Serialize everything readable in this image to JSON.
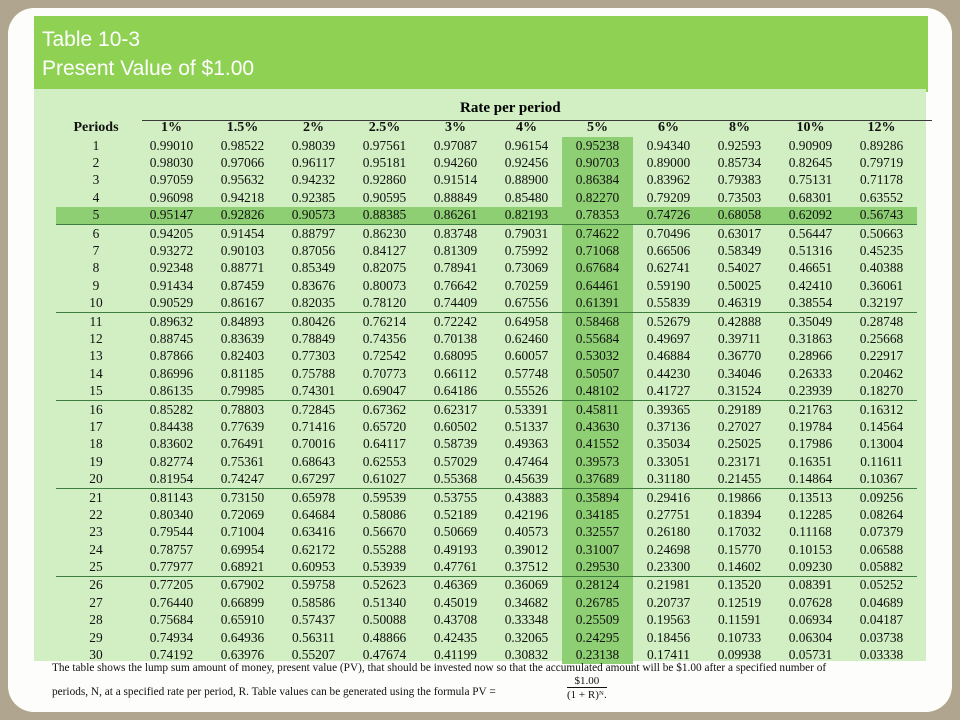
{
  "slide": {
    "title_line1": "Table 10-3",
    "title_line2": "Present Value of $1.00"
  },
  "table": {
    "rate_header": "Rate per period",
    "columns": [
      "Periods",
      "1%",
      "1.5%",
      "2%",
      "2.5%",
      "3%",
      "4%",
      "5%",
      "6%",
      "8%",
      "10%",
      "12%"
    ],
    "highlight_column": "5%",
    "highlight_period": "5",
    "rows": [
      [
        "1",
        "0.99010",
        "0.98522",
        "0.98039",
        "0.97561",
        "0.97087",
        "0.96154",
        "0.95238",
        "0.94340",
        "0.92593",
        "0.90909",
        "0.89286"
      ],
      [
        "2",
        "0.98030",
        "0.97066",
        "0.96117",
        "0.95181",
        "0.94260",
        "0.92456",
        "0.90703",
        "0.89000",
        "0.85734",
        "0.82645",
        "0.79719"
      ],
      [
        "3",
        "0.97059",
        "0.95632",
        "0.94232",
        "0.92860",
        "0.91514",
        "0.88900",
        "0.86384",
        "0.83962",
        "0.79383",
        "0.75131",
        "0.71178"
      ],
      [
        "4",
        "0.96098",
        "0.94218",
        "0.92385",
        "0.90595",
        "0.88849",
        "0.85480",
        "0.82270",
        "0.79209",
        "0.73503",
        "0.68301",
        "0.63552"
      ],
      [
        "5",
        "0.95147",
        "0.92826",
        "0.90573",
        "0.88385",
        "0.86261",
        "0.82193",
        "0.78353",
        "0.74726",
        "0.68058",
        "0.62092",
        "0.56743"
      ],
      [
        "6",
        "0.94205",
        "0.91454",
        "0.88797",
        "0.86230",
        "0.83748",
        "0.79031",
        "0.74622",
        "0.70496",
        "0.63017",
        "0.56447",
        "0.50663"
      ],
      [
        "7",
        "0.93272",
        "0.90103",
        "0.87056",
        "0.84127",
        "0.81309",
        "0.75992",
        "0.71068",
        "0.66506",
        "0.58349",
        "0.51316",
        "0.45235"
      ],
      [
        "8",
        "0.92348",
        "0.88771",
        "0.85349",
        "0.82075",
        "0.78941",
        "0.73069",
        "0.67684",
        "0.62741",
        "0.54027",
        "0.46651",
        "0.40388"
      ],
      [
        "9",
        "0.91434",
        "0.87459",
        "0.83676",
        "0.80073",
        "0.76642",
        "0.70259",
        "0.64461",
        "0.59190",
        "0.50025",
        "0.42410",
        "0.36061"
      ],
      [
        "10",
        "0.90529",
        "0.86167",
        "0.82035",
        "0.78120",
        "0.74409",
        "0.67556",
        "0.61391",
        "0.55839",
        "0.46319",
        "0.38554",
        "0.32197"
      ],
      [
        "11",
        "0.89632",
        "0.84893",
        "0.80426",
        "0.76214",
        "0.72242",
        "0.64958",
        "0.58468",
        "0.52679",
        "0.42888",
        "0.35049",
        "0.28748"
      ],
      [
        "12",
        "0.88745",
        "0.83639",
        "0.78849",
        "0.74356",
        "0.70138",
        "0.62460",
        "0.55684",
        "0.49697",
        "0.39711",
        "0.31863",
        "0.25668"
      ],
      [
        "13",
        "0.87866",
        "0.82403",
        "0.77303",
        "0.72542",
        "0.68095",
        "0.60057",
        "0.53032",
        "0.46884",
        "0.36770",
        "0.28966",
        "0.22917"
      ],
      [
        "14",
        "0.86996",
        "0.81185",
        "0.75788",
        "0.70773",
        "0.66112",
        "0.57748",
        "0.50507",
        "0.44230",
        "0.34046",
        "0.26333",
        "0.20462"
      ],
      [
        "15",
        "0.86135",
        "0.79985",
        "0.74301",
        "0.69047",
        "0.64186",
        "0.55526",
        "0.48102",
        "0.41727",
        "0.31524",
        "0.23939",
        "0.18270"
      ],
      [
        "16",
        "0.85282",
        "0.78803",
        "0.72845",
        "0.67362",
        "0.62317",
        "0.53391",
        "0.45811",
        "0.39365",
        "0.29189",
        "0.21763",
        "0.16312"
      ],
      [
        "17",
        "0.84438",
        "0.77639",
        "0.71416",
        "0.65720",
        "0.60502",
        "0.51337",
        "0.43630",
        "0.37136",
        "0.27027",
        "0.19784",
        "0.14564"
      ],
      [
        "18",
        "0.83602",
        "0.76491",
        "0.70016",
        "0.64117",
        "0.58739",
        "0.49363",
        "0.41552",
        "0.35034",
        "0.25025",
        "0.17986",
        "0.13004"
      ],
      [
        "19",
        "0.82774",
        "0.75361",
        "0.68643",
        "0.62553",
        "0.57029",
        "0.47464",
        "0.39573",
        "0.33051",
        "0.23171",
        "0.16351",
        "0.11611"
      ],
      [
        "20",
        "0.81954",
        "0.74247",
        "0.67297",
        "0.61027",
        "0.55368",
        "0.45639",
        "0.37689",
        "0.31180",
        "0.21455",
        "0.14864",
        "0.10367"
      ],
      [
        "21",
        "0.81143",
        "0.73150",
        "0.65978",
        "0.59539",
        "0.53755",
        "0.43883",
        "0.35894",
        "0.29416",
        "0.19866",
        "0.13513",
        "0.09256"
      ],
      [
        "22",
        "0.80340",
        "0.72069",
        "0.64684",
        "0.58086",
        "0.52189",
        "0.42196",
        "0.34185",
        "0.27751",
        "0.18394",
        "0.12285",
        "0.08264"
      ],
      [
        "23",
        "0.79544",
        "0.71004",
        "0.63416",
        "0.56670",
        "0.50669",
        "0.40573",
        "0.32557",
        "0.26180",
        "0.17032",
        "0.11168",
        "0.07379"
      ],
      [
        "24",
        "0.78757",
        "0.69954",
        "0.62172",
        "0.55288",
        "0.49193",
        "0.39012",
        "0.31007",
        "0.24698",
        "0.15770",
        "0.10153",
        "0.06588"
      ],
      [
        "25",
        "0.77977",
        "0.68921",
        "0.60953",
        "0.53939",
        "0.47761",
        "0.37512",
        "0.29530",
        "0.23300",
        "0.14602",
        "0.09230",
        "0.05882"
      ],
      [
        "26",
        "0.77205",
        "0.67902",
        "0.59758",
        "0.52623",
        "0.46369",
        "0.36069",
        "0.28124",
        "0.21981",
        "0.13520",
        "0.08391",
        "0.05252"
      ],
      [
        "27",
        "0.76440",
        "0.66899",
        "0.58586",
        "0.51340",
        "0.45019",
        "0.34682",
        "0.26785",
        "0.20737",
        "0.12519",
        "0.07628",
        "0.04689"
      ],
      [
        "28",
        "0.75684",
        "0.65910",
        "0.57437",
        "0.50088",
        "0.43708",
        "0.33348",
        "0.25509",
        "0.19563",
        "0.11591",
        "0.06934",
        "0.04187"
      ],
      [
        "29",
        "0.74934",
        "0.64936",
        "0.56311",
        "0.48866",
        "0.42435",
        "0.32065",
        "0.24295",
        "0.18456",
        "0.10733",
        "0.06304",
        "0.03738"
      ],
      [
        "30",
        "0.74192",
        "0.63976",
        "0.55207",
        "0.47674",
        "0.41199",
        "0.30832",
        "0.23138",
        "0.17411",
        "0.09938",
        "0.05731",
        "0.03338"
      ]
    ]
  },
  "caption": {
    "line1": "The table shows the lump sum amount of money, present value (PV), that should be invested now so that the accumulated amount will be $1.00 after a specified number of",
    "line2": "periods, N, at a specified rate per period, R. Table values can be generated using the formula PV =",
    "formula_numerator": "$1.00",
    "formula_denominator": "(1 + R)ᴺ",
    "formula_end": "."
  },
  "colors": {
    "banner": "#8fd253",
    "panel": "#d2efc3",
    "highlight": "#8fcf73"
  }
}
